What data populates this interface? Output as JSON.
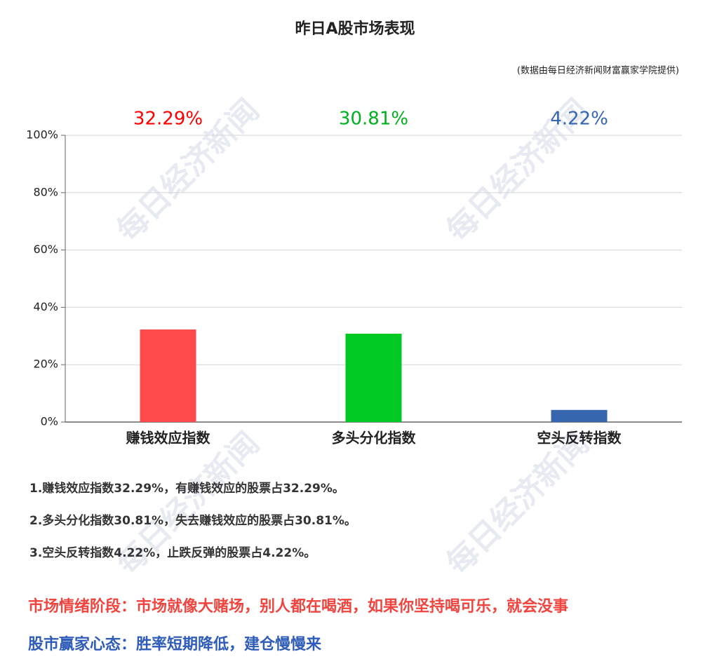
{
  "chart_data": {
    "type": "bar",
    "title": "昨日A股市场表现",
    "subtitle": "(数据由每日经济新闻财富赢家学院提供)",
    "categories": [
      "赚钱效应指数",
      "多头分化指数",
      "空头反转指数"
    ],
    "values": [
      32.29,
      30.81,
      4.22
    ],
    "value_labels": [
      "32.29%",
      "30.81%",
      "4.22%"
    ],
    "colors": [
      "#ff4b4b",
      "#00c924",
      "#3566ae"
    ],
    "label_colors": [
      "#ff0000",
      "#00b020",
      "#3566ae"
    ],
    "ylim": [
      0,
      100
    ],
    "yticks": [
      {
        "value": 0,
        "label": "0%"
      },
      {
        "value": 20,
        "label": "20%"
      },
      {
        "value": 40,
        "label": "40%"
      },
      {
        "value": 60,
        "label": "60%"
      },
      {
        "value": 80,
        "label": "80%"
      },
      {
        "value": 100,
        "label": "100%"
      }
    ],
    "grid": true
  },
  "notes": [
    "1.赚钱效应指数32.29%，有赚钱效应的股票占32.29%。",
    "2.多头分化指数30.81%，失去赚钱效应的股票占30.81%。",
    "3.空头反转指数4.22%，止跌反弹的股票占4.22%。"
  ],
  "footer": [
    {
      "text": "市场情绪阶段：市场就像大赌场，别人都在喝酒，如果你坚持喝可乐，就会没事",
      "color": "#f0443f"
    },
    {
      "text": "股市赢家心态：胜率短期降低，建仓慢慢来",
      "color": "#2e5cb8"
    }
  ],
  "watermark": "每日经济新闻"
}
